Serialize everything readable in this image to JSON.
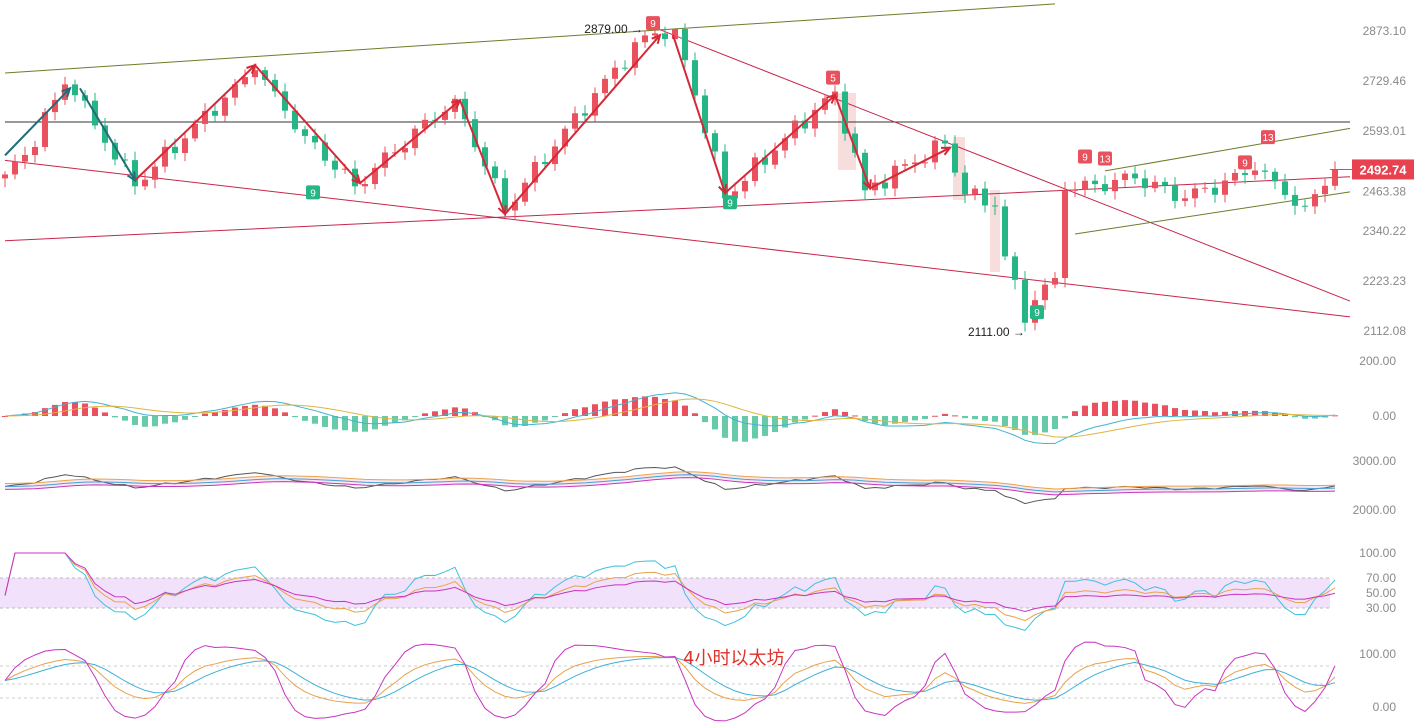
{
  "chart_data": {
    "type": "candlestick",
    "title": "4小时以太坊",
    "y_scale": "log",
    "colors": {
      "up": "#e8515d",
      "down": "#26b585",
      "trend_red": "#c8254a",
      "trend_olive": "#6b7d2a",
      "zigzag_red": "#d62836",
      "zigzag_teal": "#1f6e78",
      "last_price_badge": "#e8414f"
    },
    "price_axis_ticks": [
      "2873.10",
      "2729.46",
      "2593.01",
      "2463.38",
      "2340.22",
      "2223.23",
      "2112.08"
    ],
    "last_price": "2492.74",
    "high_label": "2879.00",
    "low_label": "2111.00",
    "price_path": [
      [
        0,
        2480
      ],
      [
        2,
        2530
      ],
      [
        6,
        2720
      ],
      [
        7,
        2690
      ],
      [
        13,
        2450
      ],
      [
        25,
        2760
      ],
      [
        30,
        2580
      ],
      [
        35,
        2450
      ],
      [
        45,
        2680
      ],
      [
        50,
        2390
      ],
      [
        64,
        2860
      ],
      [
        67,
        2879
      ],
      [
        72,
        2420
      ],
      [
        83,
        2700
      ],
      [
        86,
        2440
      ],
      [
        94,
        2560
      ],
      [
        96,
        2430
      ],
      [
        99,
        2400
      ],
      [
        100,
        2280
      ],
      [
        102,
        2130
      ],
      [
        103,
        2180
      ],
      [
        105,
        2230
      ],
      [
        106,
        2440
      ],
      [
        113,
        2470
      ],
      [
        118,
        2420
      ],
      [
        125,
        2490
      ],
      [
        130,
        2400
      ],
      [
        133,
        2492.74
      ]
    ],
    "trend_lines": [
      {
        "color": "olive",
        "from": [
          0,
          2752
        ],
        "to": [
          105.5,
          2954
        ]
      },
      {
        "color": "black",
        "from": [
          0,
          2617
        ],
        "to": [
          135,
          2617
        ]
      },
      {
        "color": "red",
        "from": [
          0,
          2516
        ],
        "to": [
          135,
          2143
        ]
      },
      {
        "color": "red",
        "from": [
          0,
          2317
        ],
        "to": [
          135,
          2474
        ]
      },
      {
        "color": "red",
        "from": [
          65.5,
          2877
        ],
        "to": [
          135,
          2178
        ]
      },
      {
        "color": "olive",
        "from": [
          110,
          2489
        ],
        "to": [
          135,
          2600
        ]
      },
      {
        "color": "olive",
        "from": [
          107,
          2333
        ],
        "to": [
          135,
          2436
        ]
      }
    ],
    "zigzag_teal": [
      [
        0,
        2529
      ],
      [
        6.5,
        2709
      ],
      [
        7.5,
        2709
      ],
      [
        13,
        2465
      ]
    ],
    "zigzag_red": [
      [
        13,
        2465
      ],
      [
        25,
        2774
      ],
      [
        35.5,
        2458
      ],
      [
        45.5,
        2676
      ],
      [
        50,
        2381
      ],
      [
        65.5,
        2861
      ],
      [
        66.8,
        2861
      ],
      [
        72,
        2433
      ],
      [
        83,
        2690
      ],
      [
        86.5,
        2445
      ],
      [
        94.5,
        2549
      ]
    ],
    "td_markers": [
      {
        "i": 30.8,
        "price": 2465,
        "label": "9",
        "side": "below"
      },
      {
        "i": 64.8,
        "price": 2855,
        "label": "9",
        "side": "above"
      },
      {
        "i": 72.5,
        "price": 2440,
        "label": "9",
        "side": "below"
      },
      {
        "i": 82.8,
        "price": 2700,
        "label": "5",
        "side": "above"
      },
      {
        "i": 103.2,
        "price": 2180,
        "label": "9",
        "side": "below"
      },
      {
        "i": 108,
        "price": 2490,
        "label": "9",
        "side": "above"
      },
      {
        "i": 110,
        "price": 2485,
        "label": "13",
        "side": "above"
      },
      {
        "i": 124,
        "price": 2475,
        "label": "9",
        "side": "above"
      },
      {
        "i": 126.3,
        "price": 2540,
        "label": "13",
        "side": "above"
      }
    ],
    "indicators": {
      "macd": {
        "ticks": [
          "200.00",
          "0.00"
        ]
      },
      "band": {
        "ticks": [
          "3000.00",
          "2000.00"
        ]
      },
      "rsi": {
        "ticks": [
          "100.00",
          "70.00",
          "50.00",
          "30.00"
        ]
      },
      "kdj": {
        "ticks": [
          "100.00",
          "0.00"
        ]
      }
    }
  }
}
